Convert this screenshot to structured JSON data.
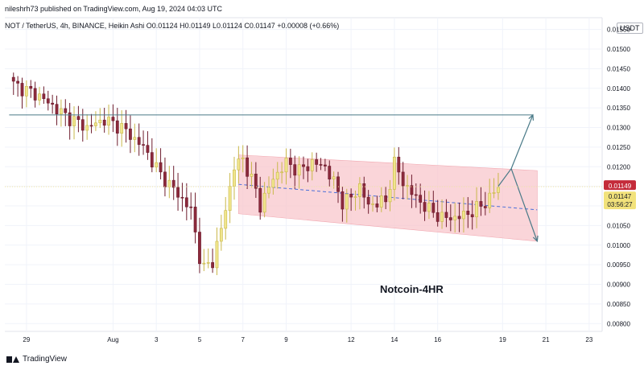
{
  "header": {
    "publisher_line": "nileshrh73 published on TradingView.com, Aug 19, 2024 04:03 UTC",
    "symbol_line": "NOT / TetherUS, 4h, BINANCE, Heikin Ashi  O0.01124  H0.01149  L0.01124  C0.01147  +0.00008 (+0.66%)"
  },
  "footer": {
    "brand": "TradingView"
  },
  "axis": {
    "currency": "USDT"
  },
  "annotation": "Notcoin-4HR",
  "price_labels": {
    "last": "0.01149",
    "current": "0.01147",
    "countdown": "03:56:27"
  },
  "colors": {
    "up_fill": "#f0e58c",
    "up_border": "#c9b84a",
    "down_fill": "#8c2a3c",
    "down_border": "#6e1d2e",
    "channel_fill": "#f8c7cc",
    "last_label": "#c42b3a",
    "current_label": "#f2e27b",
    "midline": "#4a6fd9",
    "drawing": "#4a7a88",
    "grid": "#f0f3fa"
  },
  "chart_data": {
    "type": "candlestick",
    "chart_style": "Heikin Ashi",
    "symbol": "NOT / TetherUS",
    "interval": "4h",
    "exchange": "BINANCE",
    "ylim": [
      0.0078,
      0.0158
    ],
    "y_ticks": [
      "0.01550",
      "0.01500",
      "0.01450",
      "0.01400",
      "0.01350",
      "0.01300",
      "0.01250",
      "0.01200",
      "0.01150",
      "0.01100",
      "0.01050",
      "0.01000",
      "0.00950",
      "0.00900",
      "0.00850",
      "0.00800"
    ],
    "x_ticks": [
      {
        "label": "29",
        "t": 3
      },
      {
        "label": "Aug",
        "t": 23
      },
      {
        "label": "3",
        "t": 33
      },
      {
        "label": "5",
        "t": 43
      },
      {
        "label": "7",
        "t": 53
      },
      {
        "label": "9",
        "t": 63
      },
      {
        "label": "12",
        "t": 78
      },
      {
        "label": "14",
        "t": 88
      },
      {
        "label": "16",
        "t": 98
      },
      {
        "label": "19",
        "t": 113
      },
      {
        "label": "21",
        "t": 123
      },
      {
        "label": "23",
        "t": 133
      }
    ],
    "series_points": [
      [
        0,
        0.0141
      ],
      [
        6,
        0.0138
      ],
      [
        12,
        0.0133
      ],
      [
        17,
        0.013
      ],
      [
        21,
        0.0132
      ],
      [
        25,
        0.013
      ],
      [
        30,
        0.0125
      ],
      [
        34,
        0.0118
      ],
      [
        38,
        0.0113
      ],
      [
        41,
        0.0109
      ],
      [
        43,
        0.0097
      ],
      [
        44,
        0.0094
      ],
      [
        46,
        0.0096
      ],
      [
        48,
        0.0104
      ],
      [
        51,
        0.012
      ],
      [
        53,
        0.0122
      ],
      [
        56,
        0.0114
      ],
      [
        57,
        0.011
      ],
      [
        60,
        0.0117
      ],
      [
        63,
        0.0121
      ],
      [
        66,
        0.0119
      ],
      [
        69,
        0.0121
      ],
      [
        72,
        0.012
      ],
      [
        74,
        0.0116
      ],
      [
        76,
        0.0111
      ],
      [
        78,
        0.0112
      ],
      [
        80,
        0.0115
      ],
      [
        82,
        0.011
      ],
      [
        84,
        0.0111
      ],
      [
        86,
        0.0111
      ],
      [
        88,
        0.0121
      ],
      [
        90,
        0.0116
      ],
      [
        93,
        0.0112
      ],
      [
        96,
        0.0109
      ],
      [
        99,
        0.0107
      ],
      [
        102,
        0.0107
      ],
      [
        105,
        0.0108
      ],
      [
        108,
        0.011
      ],
      [
        110,
        0.0112
      ],
      [
        112,
        0.0115
      ]
    ],
    "last_price": 0.01149,
    "current_price": 0.01147,
    "resistance_line": {
      "price": 0.01332,
      "t_start": -1,
      "t_end": 120
    },
    "channel": {
      "t_start": 52,
      "t_end": 121,
      "top_start": 0.0123,
      "top_end": 0.0119,
      "bottom_start": 0.0108,
      "bottom_end": 0.0101
    },
    "channel_mid": {
      "t_start": 52,
      "t_end": 121,
      "start": 0.01155,
      "end": 0.0109
    },
    "projection": [
      {
        "from": [
          112,
          0.0115
        ],
        "via": [
          115,
          0.01195
        ],
        "to": [
          120,
          0.01332
        ]
      },
      {
        "from": [
          115,
          0.01195
        ],
        "to": [
          121,
          0.0101
        ]
      }
    ]
  }
}
